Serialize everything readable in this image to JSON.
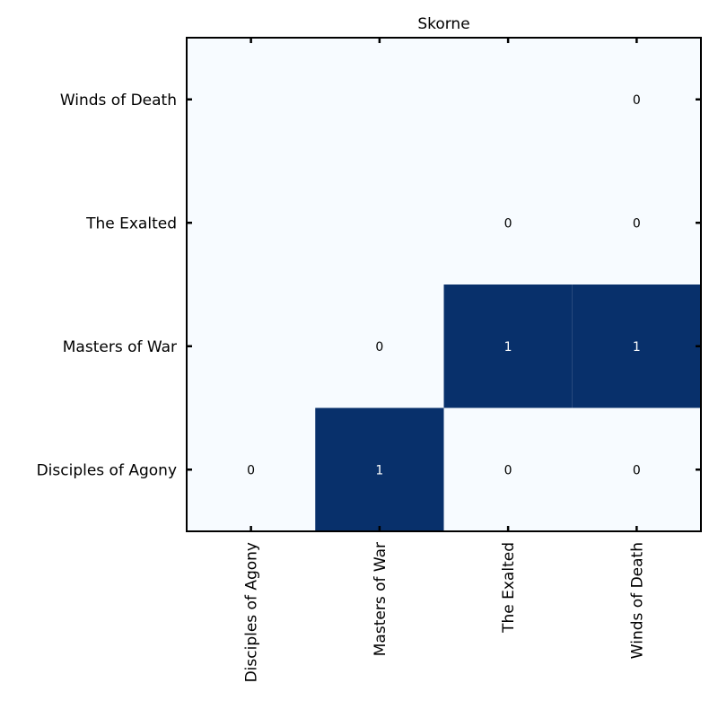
{
  "chart_data": {
    "type": "heatmap",
    "title": "Skorne",
    "xlabel": "",
    "ylabel": "",
    "x_categories": [
      "Disciples of Agony",
      "Masters of War",
      "The Exalted",
      "Winds of Death"
    ],
    "y_categories": [
      "Disciples of Agony",
      "Masters of War",
      "The Exalted",
      "Winds of Death"
    ],
    "y_order": "bottom-to-top",
    "cells": [
      {
        "row": "Disciples of Agony",
        "col": "Disciples of Agony",
        "value": 0,
        "label": "0"
      },
      {
        "row": "Disciples of Agony",
        "col": "Masters of War",
        "value": 1,
        "label": "1"
      },
      {
        "row": "Disciples of Agony",
        "col": "The Exalted",
        "value": 0,
        "label": "0"
      },
      {
        "row": "Disciples of Agony",
        "col": "Winds of Death",
        "value": 0,
        "label": "0"
      },
      {
        "row": "Masters of War",
        "col": "Masters of War",
        "value": 0,
        "label": "0"
      },
      {
        "row": "Masters of War",
        "col": "The Exalted",
        "value": 1,
        "label": "1"
      },
      {
        "row": "Masters of War",
        "col": "Winds of Death",
        "value": 1,
        "label": "1"
      },
      {
        "row": "The Exalted",
        "col": "The Exalted",
        "value": 0,
        "label": "0"
      },
      {
        "row": "The Exalted",
        "col": "Winds of Death",
        "value": 0,
        "label": "0"
      },
      {
        "row": "Winds of Death",
        "col": "Winds of Death",
        "value": 0,
        "label": "0"
      }
    ],
    "value_range": [
      0,
      1
    ],
    "colors": {
      "low": "#f7fbff",
      "high": "#08306b",
      "text_on_low": "#000000",
      "text_on_high": "#ffffff",
      "frame": "#000000"
    },
    "grid": false,
    "legend": "none"
  }
}
